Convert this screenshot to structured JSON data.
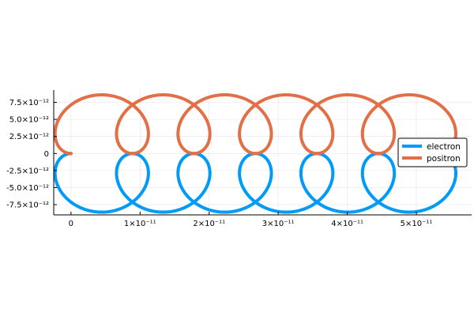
{
  "chart_data": {
    "type": "line",
    "title": "",
    "xlabel": "",
    "ylabel": "",
    "xlim": [
      -2.5e-12,
      5.8e-11
    ],
    "ylim": [
      -9e-12,
      9.3e-12
    ],
    "x_ticks": [
      0,
      1e-11,
      2e-11,
      3e-11,
      4e-11,
      5e-11
    ],
    "x_tick_labels": [
      "0",
      "1×10⁻¹¹",
      "2×10⁻¹¹",
      "3×10⁻¹¹",
      "4×10⁻¹¹",
      "5×10⁻¹¹"
    ],
    "y_ticks": [
      -7.5e-12,
      -5e-12,
      -2.5e-12,
      0,
      2.5e-12,
      5e-12,
      7.5e-12
    ],
    "y_tick_labels": [
      "-7.5×10⁻¹²",
      "-5.0×10⁻¹²",
      "-2.5×10⁻¹²",
      "0",
      "2.5×10⁻¹²",
      "5.0×10⁻¹²",
      "7.5×10⁻¹²"
    ],
    "grid": true,
    "legend_position": "right",
    "trajectory": {
      "x_drift_per_cycle": 8.9e-12,
      "radius": 4.3e-12,
      "angle_end_rad": 37.8
    },
    "series": [
      {
        "name": "electron",
        "color": "#009af9",
        "y_sign": -1
      },
      {
        "name": "positron",
        "color": "#e26f46",
        "y_sign": 1
      }
    ]
  }
}
